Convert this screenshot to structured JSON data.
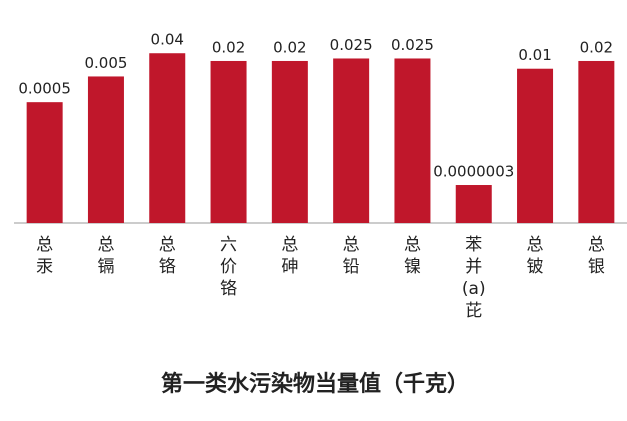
{
  "chart_data": {
    "type": "bar",
    "title": "第一类水污染物当量值（千克）",
    "categories": [
      "总汞",
      "总镉",
      "总铬",
      "六价铬",
      "总砷",
      "总铅",
      "总镍",
      "苯并(a)芘",
      "总铍",
      "总银"
    ],
    "values": [
      0.0005,
      0.005,
      0.04,
      0.02,
      0.02,
      0.025,
      0.025,
      3e-07,
      0.01,
      0.02
    ],
    "value_labels": [
      "0.0005",
      "0.005",
      "0.04",
      "0.02",
      "0.02",
      "0.025",
      "0.025",
      "0.0000003",
      "0.01",
      "0.02"
    ],
    "color": "#c0172b",
    "log_scale": true,
    "ylim": [
      1e-08,
      0.1
    ]
  }
}
